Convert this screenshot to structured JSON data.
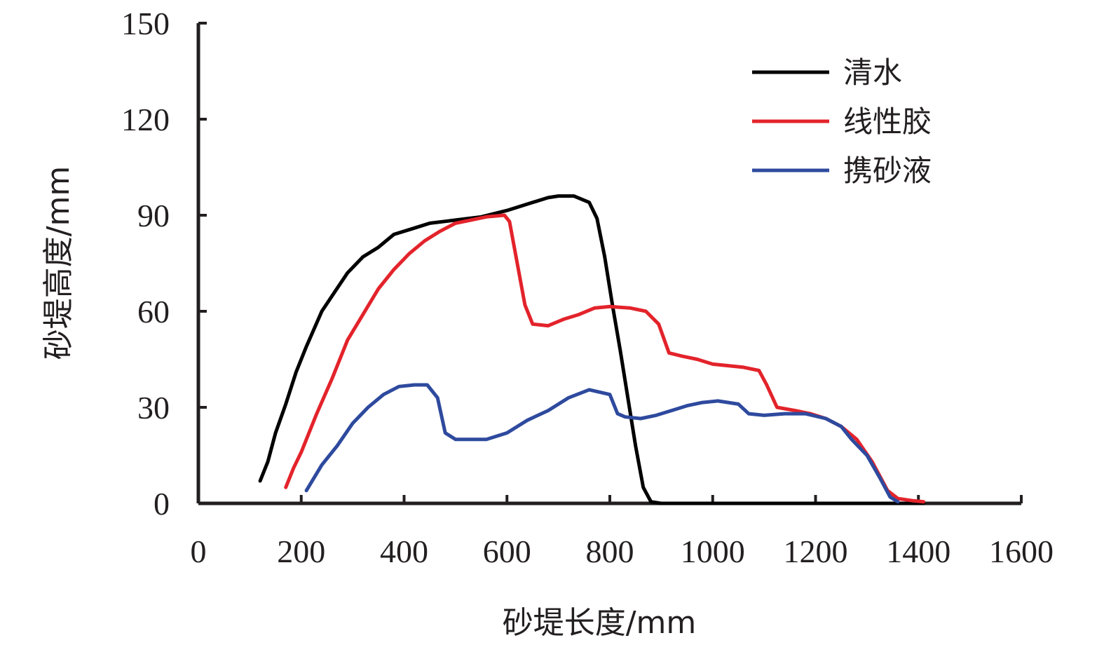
{
  "chart_data": {
    "type": "line",
    "title": "",
    "xlabel": "砂堤长度/mm",
    "ylabel": "砂堤高度/mm",
    "xlim": [
      0,
      1600
    ],
    "ylim": [
      0,
      150
    ],
    "x_ticks": [
      0,
      200,
      400,
      600,
      800,
      1000,
      1200,
      1400,
      1600
    ],
    "y_ticks": [
      0,
      30,
      60,
      90,
      120,
      150
    ],
    "x_tick_labels": [
      "0",
      "200",
      "400",
      "600",
      "800",
      "1000",
      "1200",
      "1400",
      "1600"
    ],
    "y_tick_labels": [
      "0",
      "30",
      "60",
      "90",
      "120",
      "150"
    ],
    "grid": false,
    "legend_position": "top-right",
    "series": [
      {
        "name": "清水",
        "color": "#000000",
        "points": [
          [
            120,
            7
          ],
          [
            135,
            13
          ],
          [
            150,
            22
          ],
          [
            170,
            31
          ],
          [
            190,
            41
          ],
          [
            210,
            49
          ],
          [
            240,
            60
          ],
          [
            265,
            66
          ],
          [
            290,
            72
          ],
          [
            320,
            77
          ],
          [
            350,
            80
          ],
          [
            380,
            84
          ],
          [
            420,
            86
          ],
          [
            450,
            87.5
          ],
          [
            500,
            88.5
          ],
          [
            550,
            89.5
          ],
          [
            600,
            91.5
          ],
          [
            640,
            93.5
          ],
          [
            680,
            95.5
          ],
          [
            700,
            96
          ],
          [
            730,
            96
          ],
          [
            760,
            94
          ],
          [
            775,
            89
          ],
          [
            790,
            77
          ],
          [
            805,
            62
          ],
          [
            820,
            48
          ],
          [
            835,
            33
          ],
          [
            850,
            18
          ],
          [
            865,
            5
          ],
          [
            880,
            0.5
          ],
          [
            900,
            0
          ],
          [
            1000,
            0
          ],
          [
            1200,
            0
          ],
          [
            1410,
            0
          ]
        ]
      },
      {
        "name": "线性胶",
        "color": "#e3232b",
        "points": [
          [
            170,
            5
          ],
          [
            185,
            11
          ],
          [
            200,
            16
          ],
          [
            230,
            28
          ],
          [
            260,
            39
          ],
          [
            290,
            51
          ],
          [
            320,
            59
          ],
          [
            350,
            67
          ],
          [
            380,
            73
          ],
          [
            410,
            78
          ],
          [
            440,
            82
          ],
          [
            470,
            85
          ],
          [
            500,
            87.5
          ],
          [
            530,
            88.5
          ],
          [
            560,
            89.5
          ],
          [
            595,
            90
          ],
          [
            605,
            88
          ],
          [
            620,
            75
          ],
          [
            635,
            62
          ],
          [
            650,
            56
          ],
          [
            680,
            55.5
          ],
          [
            710,
            57.5
          ],
          [
            740,
            59
          ],
          [
            770,
            61
          ],
          [
            800,
            61.5
          ],
          [
            840,
            61
          ],
          [
            870,
            60
          ],
          [
            895,
            56
          ],
          [
            915,
            47
          ],
          [
            940,
            46
          ],
          [
            970,
            45
          ],
          [
            1000,
            43.5
          ],
          [
            1030,
            43
          ],
          [
            1060,
            42.5
          ],
          [
            1090,
            41.5
          ],
          [
            1105,
            37
          ],
          [
            1125,
            30
          ],
          [
            1160,
            29
          ],
          [
            1190,
            28
          ],
          [
            1220,
            26.5
          ],
          [
            1250,
            24
          ],
          [
            1280,
            20
          ],
          [
            1310,
            13
          ],
          [
            1340,
            4
          ],
          [
            1360,
            1.5
          ],
          [
            1390,
            0.8
          ],
          [
            1410,
            0.5
          ]
        ]
      },
      {
        "name": "携砂液",
        "color": "#2e4a9e",
        "points": [
          [
            210,
            4
          ],
          [
            240,
            12
          ],
          [
            270,
            18
          ],
          [
            300,
            25
          ],
          [
            330,
            30
          ],
          [
            360,
            34
          ],
          [
            390,
            36.5
          ],
          [
            420,
            37
          ],
          [
            445,
            37
          ],
          [
            465,
            33
          ],
          [
            480,
            22
          ],
          [
            500,
            20
          ],
          [
            560,
            20
          ],
          [
            600,
            22
          ],
          [
            640,
            26
          ],
          [
            680,
            29
          ],
          [
            720,
            33
          ],
          [
            760,
            35.5
          ],
          [
            800,
            34
          ],
          [
            815,
            28
          ],
          [
            830,
            27
          ],
          [
            860,
            26.5
          ],
          [
            890,
            27.5
          ],
          [
            920,
            29
          ],
          [
            950,
            30.5
          ],
          [
            980,
            31.5
          ],
          [
            1010,
            32
          ],
          [
            1050,
            31
          ],
          [
            1070,
            28
          ],
          [
            1100,
            27.5
          ],
          [
            1140,
            28
          ],
          [
            1180,
            28
          ],
          [
            1220,
            26.5
          ],
          [
            1250,
            24
          ],
          [
            1270,
            20
          ],
          [
            1300,
            15
          ],
          [
            1325,
            8
          ],
          [
            1345,
            2
          ],
          [
            1360,
            0.5
          ]
        ]
      }
    ]
  }
}
